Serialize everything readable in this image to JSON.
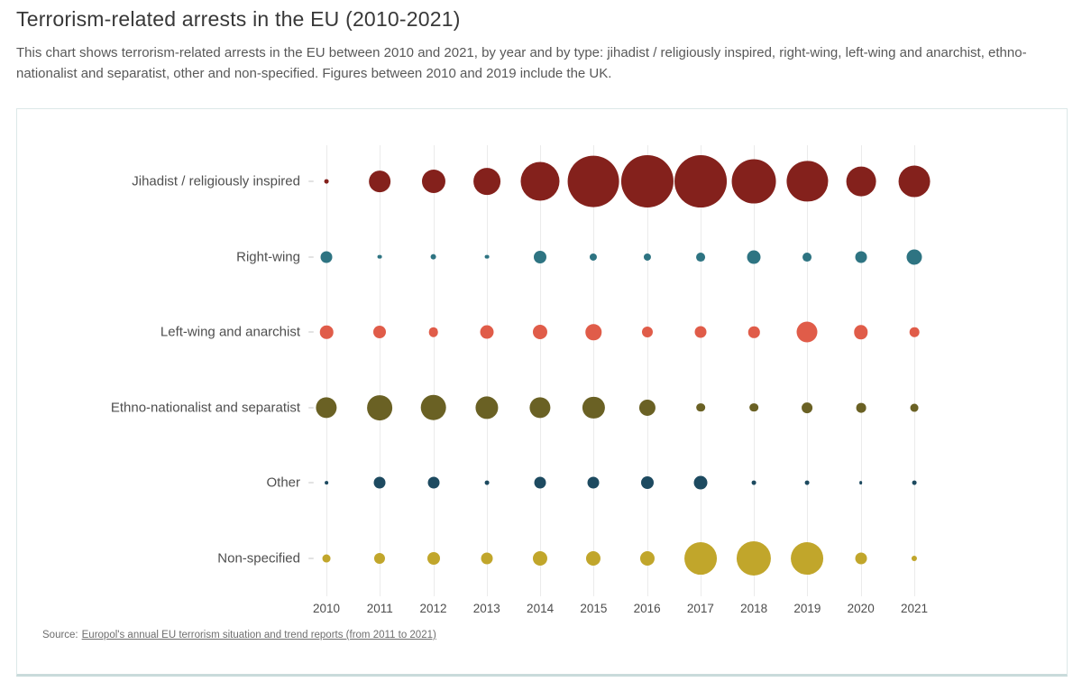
{
  "page": {
    "title": "Terrorism-related arrests in the EU (2010-2021)",
    "subtitle": "This chart shows terrorism-related arrests in the EU between 2010 and 2021, by year and by type: jihadist / religiously inspired, right-wing, left-wing and anarchist, ethno-nationalist and separatist, other and non-specified. Figures between 2010 and 2019 include the UK.",
    "source_prefix": "Source:",
    "source_link": "Europol's annual EU terrorism situation and trend reports (from 2011 to 2021)"
  },
  "colors": {
    "background": "#ffffff",
    "card_border": "#dce8e8",
    "card_border_bottom": "#c9dbdb",
    "gridline": "#ebebeb",
    "title_text": "#383838",
    "body_text": "#585858",
    "axis_text": "#4d4d4d"
  },
  "chart_data": {
    "type": "bubble",
    "title": "Terrorism-related arrests in the EU (2010-2021)",
    "xlabel": "",
    "ylabel": "",
    "legend": "none",
    "grid": "vertical-only",
    "size_encoding": "bubble area proportional to number of arrests (values estimated from bubble sizes; no numeric labels shown)",
    "x": [
      2010,
      2011,
      2012,
      2013,
      2014,
      2015,
      2016,
      2017,
      2018,
      2019,
      2020,
      2021
    ],
    "categories": [
      "Jihadist / religiously inspired",
      "Right-wing",
      "Left-wing and anarchist",
      "Ethno-nationalist and separatist",
      "Other",
      "Non-specified"
    ],
    "series": [
      {
        "name": "Jihadist / religiously inspired",
        "color": "#84211c",
        "values": [
          5,
          120,
          145,
          190,
          395,
          690,
          720,
          715,
          510,
          435,
          230,
          260
        ]
      },
      {
        "name": "Right-wing",
        "color": "#2e7482",
        "values": [
          36,
          5,
          10,
          5,
          42,
          14,
          14,
          21,
          48,
          21,
          36,
          62
        ]
      },
      {
        "name": "Left-wing and anarchist",
        "color": "#e05c49",
        "values": [
          45,
          42,
          24,
          48,
          55,
          65,
          31,
          36,
          33,
          113,
          51,
          24
        ]
      },
      {
        "name": "Ethno-nationalist and separatist",
        "color": "#6a6124",
        "values": [
          115,
          165,
          175,
          135,
          115,
          125,
          70,
          20,
          20,
          30,
          25,
          17
        ]
      },
      {
        "name": "Other",
        "color": "#1d4a60",
        "values": [
          3,
          36,
          36,
          5,
          36,
          36,
          42,
          48,
          5,
          5,
          3,
          5
        ]
      },
      {
        "name": "Non-specified",
        "color": "#c1a62b",
        "values": [
          17,
          31,
          42,
          36,
          55,
          55,
          55,
          275,
          310,
          275,
          36,
          8
        ]
      }
    ]
  }
}
